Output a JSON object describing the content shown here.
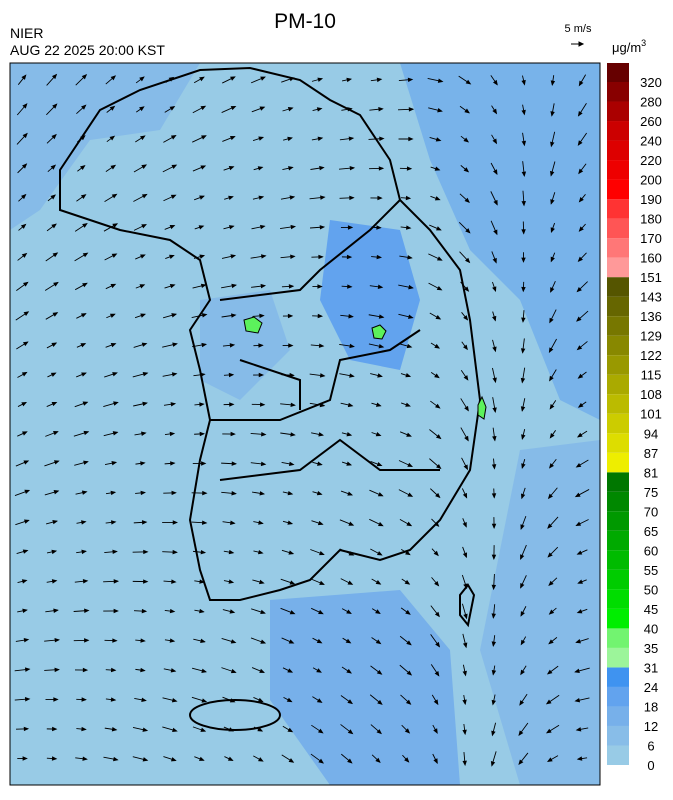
{
  "header": {
    "title": "PM-10",
    "agency": "NIER",
    "datetime": "AUG 22 2025 20:00 KST",
    "wind_scale": "5 m/s"
  },
  "colorbar": {
    "unit": "μg/m",
    "unit_power": "3",
    "levels": [
      0,
      6,
      12,
      18,
      24,
      31,
      35,
      40,
      45,
      50,
      55,
      60,
      65,
      70,
      75,
      81,
      87,
      94,
      101,
      108,
      115,
      122,
      129,
      136,
      143,
      151,
      160,
      170,
      180,
      190,
      200,
      220,
      240,
      260,
      280,
      320
    ],
    "colors": [
      "#98cbe6",
      "#88bde8",
      "#77b0ea",
      "#62a3ee",
      "#3f93f0",
      "#9cf59a",
      "#72f470",
      "#00ee00",
      "#00dd00",
      "#00cc00",
      "#00bb00",
      "#00aa00",
      "#009900",
      "#008800",
      "#007700",
      "#eeee00",
      "#dddd00",
      "#cccc00",
      "#bbbb00",
      "#aaaa00",
      "#999900",
      "#888800",
      "#777700",
      "#666600",
      "#555500",
      "#ff9999",
      "#ff7777",
      "#ff5555",
      "#ff3333",
      "#ff0000",
      "#ee0000",
      "#dd0000",
      "#cc0000",
      "#aa0000",
      "#880000",
      "#660000"
    ]
  }
}
